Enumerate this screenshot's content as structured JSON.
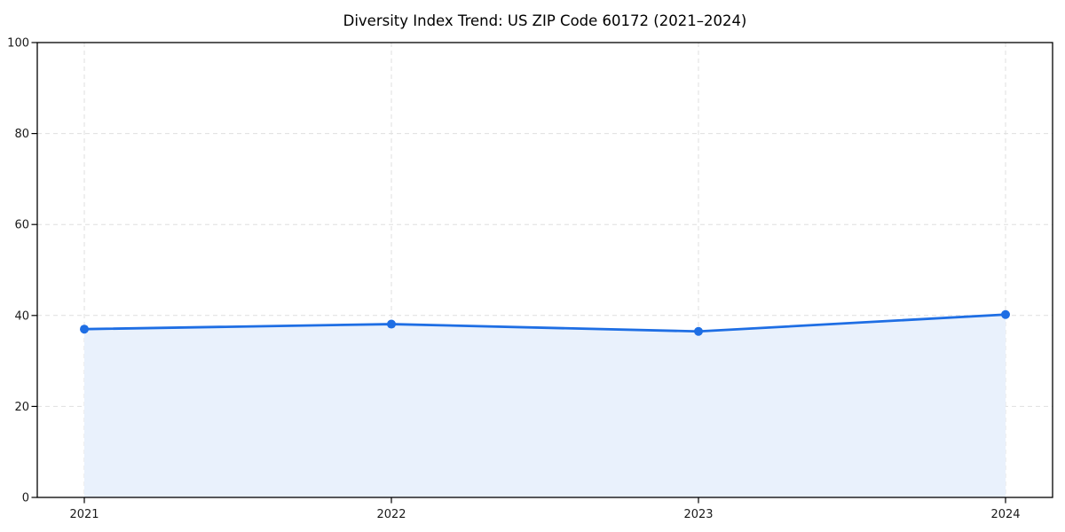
{
  "chart_data": {
    "type": "area",
    "title": "Diversity Index Trend: US ZIP Code 60172 (2021–2024)",
    "categories": [
      "2021",
      "2022",
      "2023",
      "2024"
    ],
    "values": [
      37.0,
      38.1,
      36.5,
      40.2
    ],
    "xlabel": "",
    "ylabel": "",
    "ylim": [
      0,
      100
    ],
    "yticks": [
      0,
      20,
      40,
      60,
      80,
      100
    ],
    "grid": true,
    "grid_style": "dashed",
    "legend": false,
    "colors": {
      "line": "#1e6ee4",
      "marker": "#1e6ee4",
      "area_fill": "#e9f1fc",
      "grid": "#dfdfdf",
      "axis": "#000000",
      "tick_label": "#1a1a1a",
      "title": "#000000",
      "background": "#ffffff"
    }
  }
}
